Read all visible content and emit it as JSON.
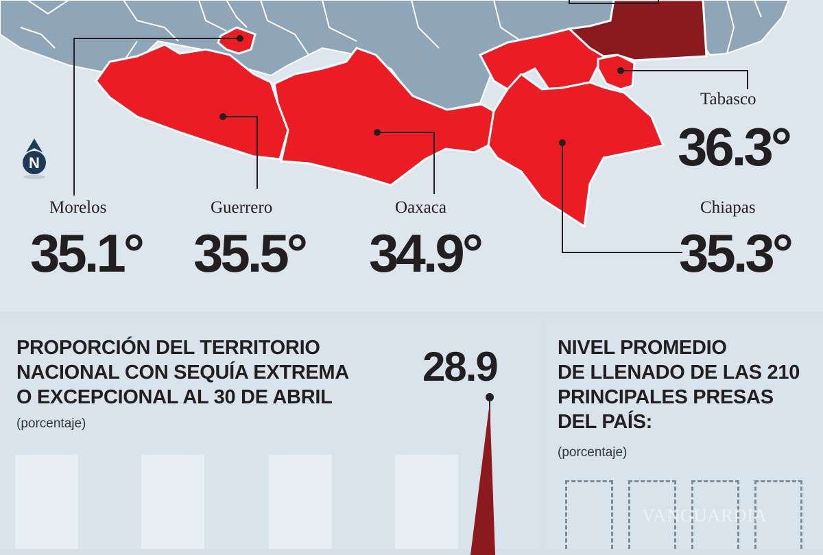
{
  "map": {
    "states": [
      {
        "name": "Morelos",
        "temp": "35.1°"
      },
      {
        "name": "Guerrero",
        "temp": "35.5°"
      },
      {
        "name": "Oaxaca",
        "temp": "34.9°"
      },
      {
        "name": "Tabasco",
        "temp": "36.3°"
      },
      {
        "name": "Chiapas",
        "temp": "35.3°"
      }
    ],
    "compass_letter": "N",
    "colors": {
      "water": "#dde5ed",
      "land": "#8fa6b8",
      "hot_state": "#ec1c24",
      "hottest_state": "#8b1a1f",
      "border": "#ffffff"
    }
  },
  "drought": {
    "title_lines": [
      "PROPORCIÓN DEL TERRITORIO",
      "NACIONAL CON SEQUÍA EXTREMA",
      "O EXCEPCIONAL AL 30 DE ABRIL"
    ],
    "unit": "(porcentaje)",
    "peak_value": "28.9"
  },
  "dams": {
    "title_lines": [
      "NIVEL PROMEDIO",
      "DE LLENADO DE LAS 210",
      "PRINCIPALES PRESAS",
      "DEL PAÍS:"
    ],
    "unit": "(porcentaje)"
  },
  "watermark": "VANGUARDIA"
}
